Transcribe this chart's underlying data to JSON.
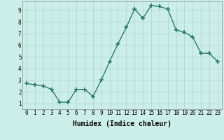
{
  "x": [
    0,
    1,
    2,
    3,
    4,
    5,
    6,
    7,
    8,
    9,
    10,
    11,
    12,
    13,
    14,
    15,
    16,
    17,
    18,
    19,
    20,
    21,
    22,
    23
  ],
  "y": [
    2.7,
    2.6,
    2.5,
    2.2,
    1.1,
    1.1,
    2.2,
    2.2,
    1.6,
    3.0,
    4.6,
    6.1,
    7.5,
    9.1,
    8.3,
    9.4,
    9.3,
    9.1,
    7.3,
    7.1,
    6.7,
    5.3,
    5.3,
    4.6
  ],
  "line_color": "#2d7a6e",
  "marker": "+",
  "marker_size": 4,
  "marker_lw": 1.2,
  "bg_color": "#cceee8",
  "grid_color": "#aad4ce",
  "xlabel": "Humidex (Indice chaleur)",
  "xlim": [
    -0.5,
    23.5
  ],
  "ylim": [
    0.5,
    9.75
  ],
  "yticks": [
    1,
    2,
    3,
    4,
    5,
    6,
    7,
    8,
    9
  ],
  "xticks": [
    0,
    1,
    2,
    3,
    4,
    5,
    6,
    7,
    8,
    9,
    10,
    11,
    12,
    13,
    14,
    15,
    16,
    17,
    18,
    19,
    20,
    21,
    22,
    23
  ],
  "tick_fontsize": 5.5,
  "xlabel_fontsize": 7,
  "line_width": 1.0
}
